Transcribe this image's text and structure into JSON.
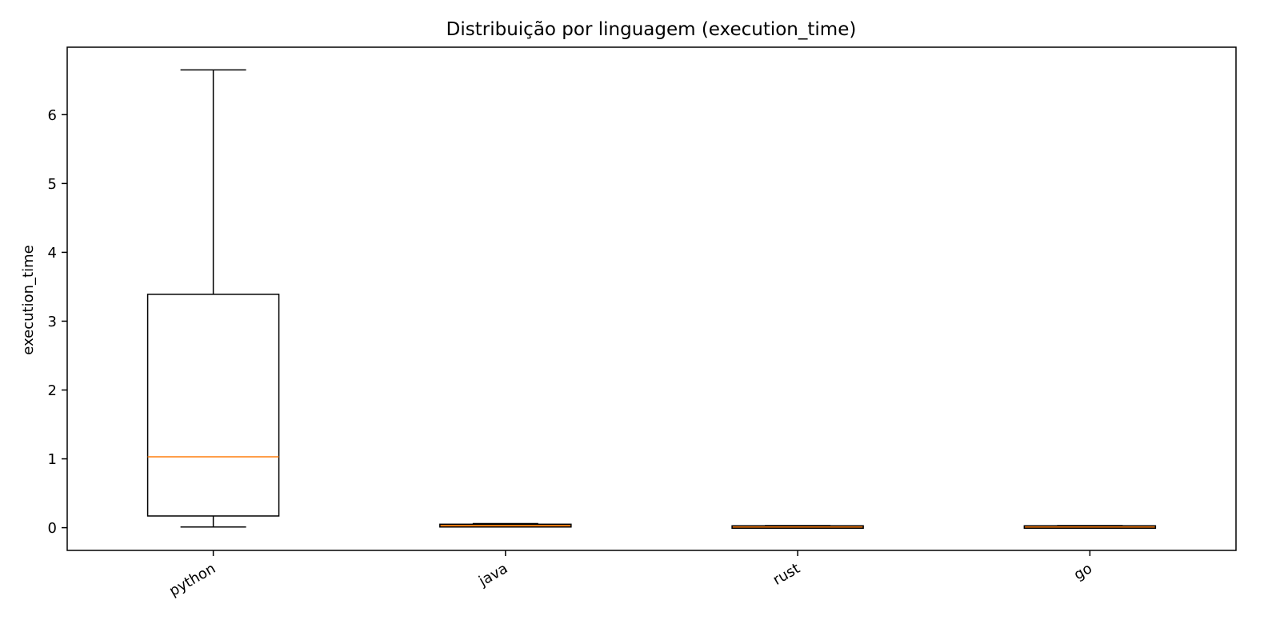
{
  "chart_data": {
    "type": "boxplot",
    "title": "Distribuição por linguagem (execution_time)",
    "xlabel": "",
    "ylabel": "execution_time",
    "ylim": [
      -0.33,
      6.98
    ],
    "yticks": [
      0,
      1,
      2,
      3,
      4,
      5,
      6
    ],
    "grid": false,
    "legend": "none",
    "categories": [
      "python",
      "java",
      "rust",
      "go"
    ],
    "boxes": [
      {
        "label": "python",
        "whisker_low": 0.01,
        "q1": 0.17,
        "median": 1.03,
        "q3": 3.39,
        "whisker_high": 6.65
      },
      {
        "label": "java",
        "whisker_low": 0.01,
        "q1": 0.01,
        "median": 0.03,
        "q3": 0.05,
        "whisker_high": 0.06
      },
      {
        "label": "rust",
        "whisker_low": 0.0,
        "q1": 0.0,
        "median": 0.01,
        "q3": 0.02,
        "whisker_high": 0.03
      },
      {
        "label": "go",
        "whisker_low": 0.0,
        "q1": 0.0,
        "median": 0.01,
        "q3": 0.02,
        "whisker_high": 0.03
      }
    ],
    "colors": {
      "box": "#000000",
      "median": "#ff7f0e",
      "small_box_fill": "#ff7f0e"
    }
  }
}
